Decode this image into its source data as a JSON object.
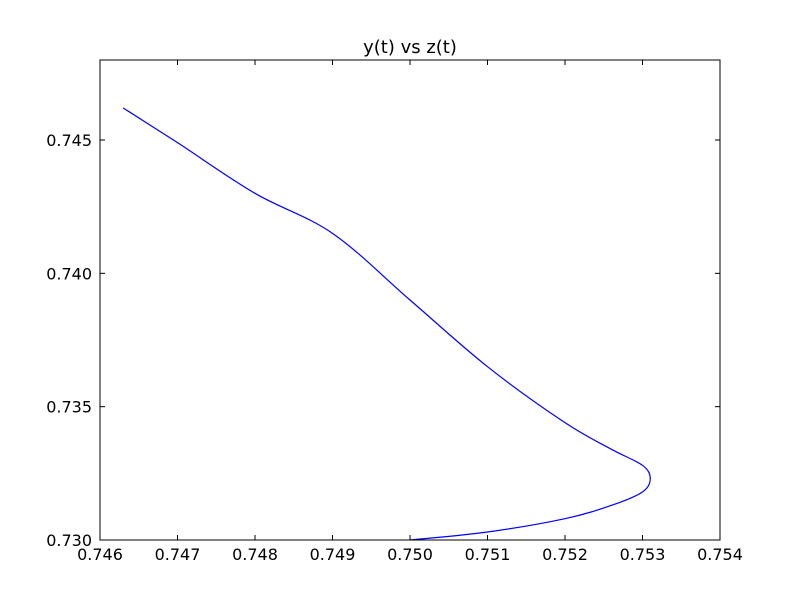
{
  "chart_data": {
    "type": "line",
    "title": "y(t) vs z(t)",
    "xlabel": "",
    "ylabel": "",
    "xlim": [
      0.746,
      0.754
    ],
    "ylim": [
      0.73,
      0.748
    ],
    "xticks": [
      0.746,
      0.747,
      0.748,
      0.749,
      0.75,
      0.751,
      0.752,
      0.753,
      0.754
    ],
    "xtick_labels": [
      "0.746",
      "0.747",
      "0.748",
      "0.749",
      "0.750",
      "0.751",
      "0.752",
      "0.753",
      "0.754"
    ],
    "yticks": [
      0.73,
      0.735,
      0.74,
      0.745
    ],
    "ytick_labels": [
      "0.730",
      "0.735",
      "0.740",
      "0.745"
    ],
    "grid": false,
    "series": [
      {
        "color": "#0000ff",
        "x": [
          0.75,
          0.751,
          0.752,
          0.7526,
          0.753,
          0.7531,
          0.753,
          0.7526,
          0.752,
          0.751,
          0.75,
          0.749,
          0.748,
          0.747,
          0.7463
        ],
        "y": [
          0.73,
          0.7303,
          0.7308,
          0.7313,
          0.7318,
          0.7323,
          0.7328,
          0.7334,
          0.7344,
          0.7365,
          0.739,
          0.7415,
          0.743,
          0.7449,
          0.7462
        ]
      }
    ]
  }
}
